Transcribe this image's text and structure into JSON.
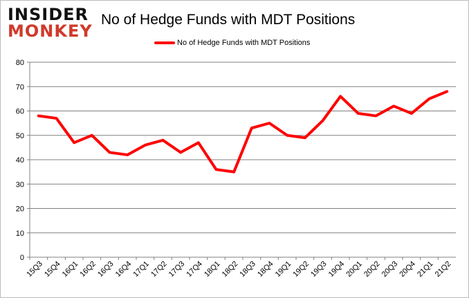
{
  "logo": {
    "line1": "INSIDER",
    "line2": "MONKEY"
  },
  "colors": {
    "series": "#ff0000",
    "grid": "#808080"
  },
  "chart_data": {
    "type": "line",
    "title": "No of Hedge Funds with MDT Positions",
    "legend_position": "top",
    "grid": true,
    "ylim": [
      0,
      80
    ],
    "yticks": [
      0,
      10,
      20,
      30,
      40,
      50,
      60,
      70,
      80
    ],
    "categories": [
      "15Q3",
      "15Q4",
      "16Q1",
      "16Q2",
      "16Q3",
      "16Q4",
      "17Q1",
      "17Q2",
      "17Q3",
      "17Q4",
      "18Q1",
      "18Q2",
      "18Q3",
      "18Q4",
      "19Q1",
      "19Q2",
      "19Q3",
      "19Q4",
      "20Q1",
      "20Q2",
      "20Q3",
      "20Q4",
      "21Q1",
      "21Q2"
    ],
    "series": [
      {
        "name": "No of Hedge Funds with MDT Positions",
        "values": [
          58,
          57,
          47,
          50,
          43,
          42,
          46,
          48,
          43,
          47,
          36,
          35,
          53,
          55,
          50,
          49,
          56,
          66,
          59,
          58,
          62,
          59,
          65,
          68
        ]
      }
    ]
  }
}
